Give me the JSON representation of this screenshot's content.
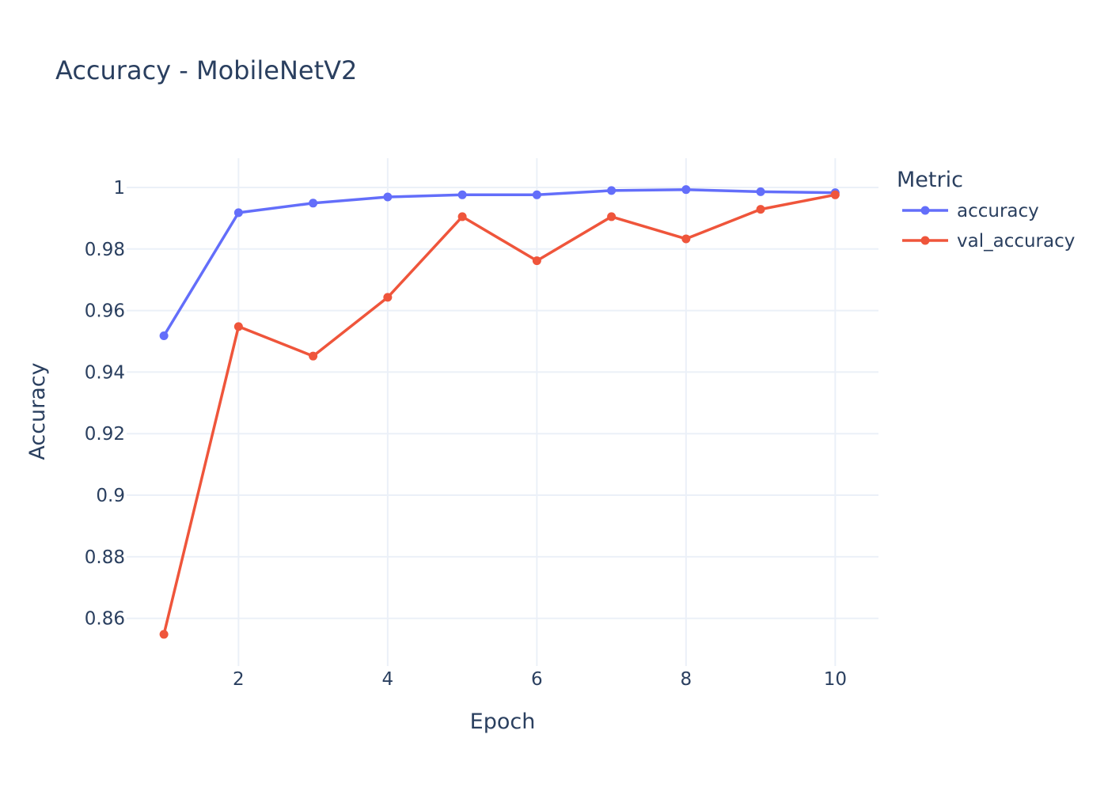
{
  "chart_data": {
    "type": "line",
    "title": "Accuracy - MobileNetV2",
    "xlabel": "Epoch",
    "ylabel": "Accuracy",
    "xlim": [
      0.5,
      10.58
    ],
    "ylim": [
      0.8445,
      1.0095
    ],
    "xticks": [
      2,
      4,
      6,
      8,
      10
    ],
    "xtick_labels": [
      "2",
      "4",
      "6",
      "8",
      "10"
    ],
    "yticks": [
      0.86,
      0.88,
      0.9,
      0.92,
      0.94,
      0.96,
      0.98,
      1
    ],
    "ytick_labels": [
      "0.86",
      "0.88",
      "0.9",
      "0.92",
      "0.94",
      "0.96",
      "0.98",
      "1"
    ],
    "grid": true,
    "legend": {
      "title": "Metric",
      "placement": "top-right, outside plot"
    },
    "x": [
      1,
      2,
      3,
      4,
      5,
      6,
      7,
      8,
      9,
      10
    ],
    "series": [
      {
        "name": "accuracy",
        "color": "#636efa",
        "values": [
          0.9518,
          0.9918,
          0.9949,
          0.9969,
          0.9976,
          0.9976,
          0.999,
          0.9993,
          0.9986,
          0.9983
        ]
      },
      {
        "name": "val_accuracy",
        "color": "#ef553b",
        "values": [
          0.8548,
          0.9548,
          0.9452,
          0.9643,
          0.9905,
          0.9762,
          0.9905,
          0.9833,
          0.9929,
          0.9976
        ]
      }
    ]
  }
}
